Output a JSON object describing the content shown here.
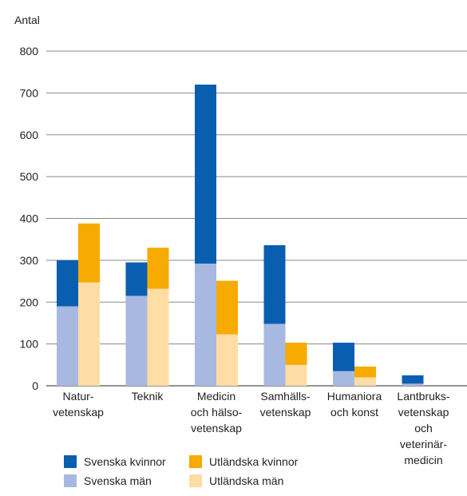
{
  "chart_data": {
    "type": "bar",
    "stacked": true,
    "grouped": true,
    "title": "",
    "ylabel": "Antal",
    "xlabel": "",
    "ylim": [
      0,
      800
    ],
    "yticks": [
      0,
      100,
      200,
      300,
      400,
      500,
      600,
      700,
      800
    ],
    "grid": "horizontal",
    "legend_position": "bottom",
    "categories": [
      [
        "Natur-",
        "vetenskap"
      ],
      [
        "Teknik"
      ],
      [
        "Medicin",
        "och hälso-",
        "vetenskap"
      ],
      [
        "Samhälls-",
        "vetenskap"
      ],
      [
        "Humaniora",
        "och konst"
      ],
      [
        "Lantbruks-",
        "vetenskap",
        "och",
        "veterinär-",
        "medicin"
      ]
    ],
    "groups": [
      {
        "name": "Svenska",
        "series": [
          {
            "name": "Svenska män",
            "color": "#a7b9e1",
            "values": [
              190,
              215,
              292,
              148,
              35,
              5
            ]
          },
          {
            "name": "Svenska kvinnor",
            "color": "#0a5eb0",
            "values": [
              110,
              80,
              428,
              188,
              68,
              20
            ]
          }
        ]
      },
      {
        "name": "Utländska",
        "series": [
          {
            "name": "Utländska män",
            "color": "#ffdda5",
            "values": [
              247,
              232,
              123,
              50,
              20,
              0
            ]
          },
          {
            "name": "Utländska kvinnor",
            "color": "#f7aa00",
            "values": [
              141,
              98,
              128,
              53,
              26,
              0
            ]
          }
        ]
      }
    ],
    "legend": [
      {
        "label": "Svenska kvinnor",
        "color": "#0a5eb0"
      },
      {
        "label": "Utländska kvinnor",
        "color": "#f7aa00"
      },
      {
        "label": "Svenska män",
        "color": "#a7b9e1"
      },
      {
        "label": "Utländska män",
        "color": "#ffdda5"
      }
    ]
  }
}
